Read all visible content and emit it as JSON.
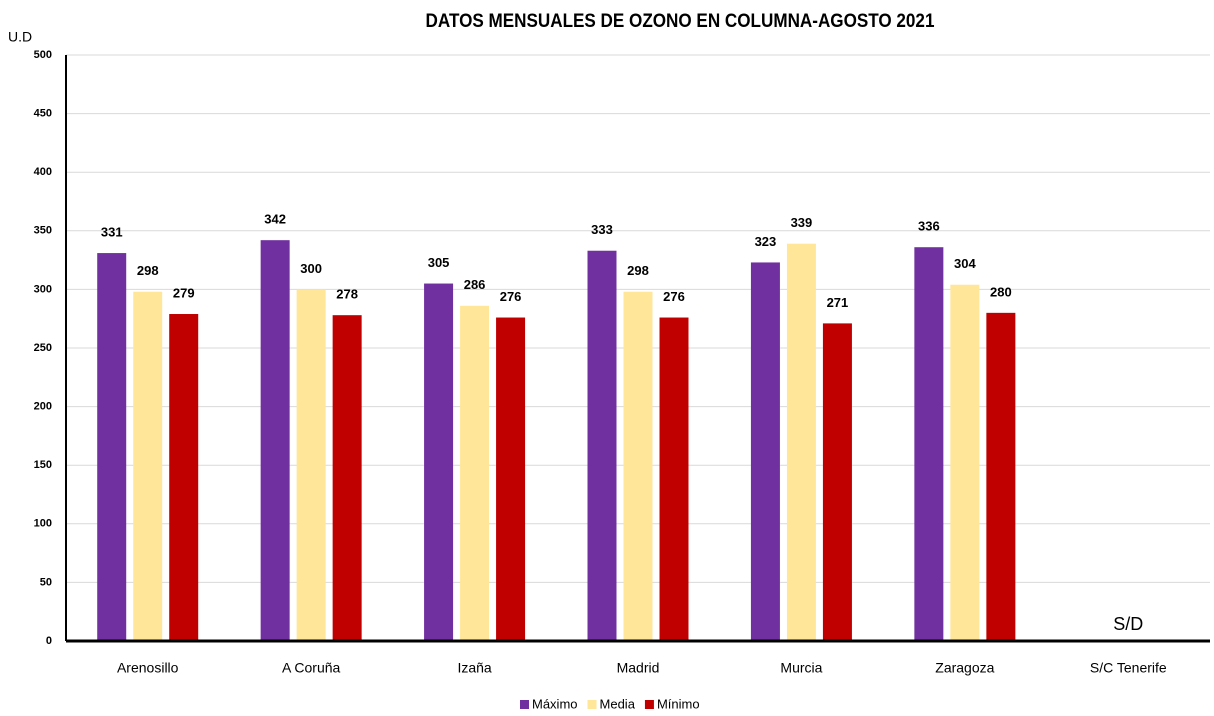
{
  "chart_data": {
    "type": "bar",
    "title": "DATOS MENSUALES DE OZONO EN COLUMNA-AGOSTO 2021",
    "y_label": "U.D",
    "annotation": "S/D",
    "categories": [
      "Arenosillo",
      "A Coruña",
      "Izaña",
      "Madrid",
      "Murcia",
      "Zaragoza",
      "S/C Tenerife"
    ],
    "series": [
      {
        "name": "Máximo",
        "color": "#7030a0",
        "values": [
          331,
          342,
          305,
          333,
          323,
          336,
          null
        ]
      },
      {
        "name": "Media",
        "color": "#ffe699",
        "values": [
          298,
          300,
          286,
          298,
          339,
          304,
          null
        ]
      },
      {
        "name": "Mínimo",
        "color": "#c00000",
        "values": [
          279,
          278,
          276,
          276,
          271,
          280,
          null
        ]
      }
    ],
    "ylim": [
      0,
      500
    ],
    "yticks": [
      0,
      50,
      100,
      150,
      200,
      250,
      300,
      350,
      400,
      450,
      500
    ],
    "grid": true,
    "legend": "bottom"
  }
}
